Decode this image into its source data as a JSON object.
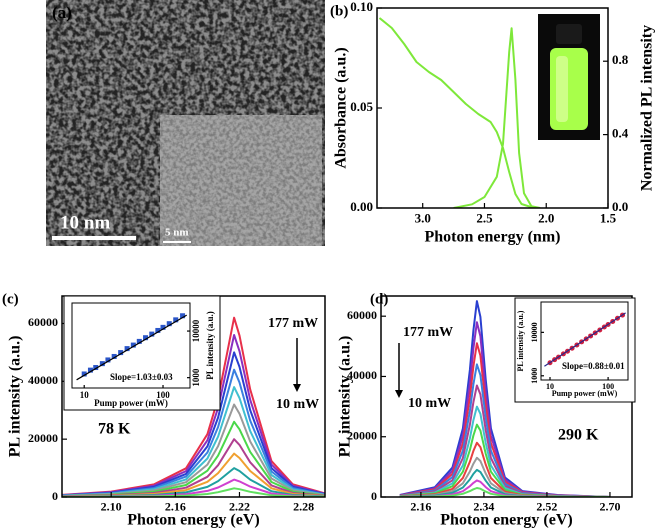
{
  "image_panel": {
    "label": "(a)",
    "scale_bar": "10 nm",
    "inset_scale_bar": "5 nm"
  },
  "chart_data": [
    {
      "type": "line",
      "panel": "(b)",
      "xlabel": "Photon energy (nm)",
      "ylabel": "Absorbance (a.u.)",
      "y2label": "Normalized PL intensity",
      "xlim": [
        3.37,
        1.5
      ],
      "xticks": [
        {
          "value": 3,
          "label": "3.0"
        },
        2.5,
        {
          "value": 2,
          "label": "2.0"
        },
        1.5
      ],
      "ylim": [
        0,
        0.1
      ],
      "yticks": [
        {
          "value": 0,
          "label": "0.00"
        },
        0.05,
        {
          "value": 0.1,
          "label": "0.10"
        }
      ],
      "y2lim": [
        0,
        1.09
      ],
      "y2ticks": [
        {
          "value": 0,
          "label": "0.0"
        },
        0.4,
        0.8
      ],
      "series": [
        {
          "color": "#7ee83a",
          "x": [
            3.35,
            3.25,
            3.15,
            3.05,
            2.95,
            2.85,
            2.75,
            2.65,
            2.55,
            2.45,
            2.4,
            2.35,
            2.3,
            2.25,
            2.2,
            2.1
          ],
          "values": [
            0.095,
            0.09,
            0.082,
            0.073,
            0.068,
            0.064,
            0.058,
            0.052,
            0.047,
            0.043,
            0.038,
            0.03,
            0.018,
            0.007,
            0.002,
            0
          ]
        },
        {
          "color": "#7ee83a",
          "axis": "y2",
          "x": [
            2.75,
            2.6,
            2.5,
            2.4,
            2.35,
            2.3,
            2.28,
            2.25,
            2.22,
            2.18,
            2.12,
            2.05
          ],
          "values": [
            0,
            0.02,
            0.06,
            0.17,
            0.35,
            0.85,
            0.98,
            0.7,
            0.3,
            0.08,
            0.01,
            0
          ]
        }
      ]
    },
    {
      "type": "line",
      "panel": "(c)",
      "xlabel": "Photon energy (eV)",
      "ylabel": "PL intensity (a.u.)",
      "annotations": [
        "177 mW",
        "10 mW",
        "78 K"
      ],
      "xlim": [
        2.054,
        2.3
      ],
      "xticks": [
        {
          "value": 2.1,
          "label": "2.10"
        },
        2.16,
        2.22,
        2.28
      ],
      "ylim": [
        0,
        69500
      ],
      "yticks": [
        0,
        20000,
        40000,
        60000
      ],
      "x": [
        2.05,
        2.1,
        2.14,
        2.17,
        2.19,
        2.2,
        2.21,
        2.215,
        2.22,
        2.23,
        2.25,
        2.27,
        2.3
      ],
      "series": [
        {
          "color": "#e8304a",
          "values": [
            620,
            1860,
            4340,
            9920,
            21700,
            34100,
            52700,
            62000,
            55800,
            37200,
            12400,
            4340,
            1240
          ]
        },
        {
          "color": "#8a2fc0",
          "values": [
            560,
            1680,
            3920,
            8960,
            19600,
            30800,
            47600,
            56000,
            50400,
            33600,
            11200,
            3920,
            1120
          ]
        },
        {
          "color": "#2a3fd0",
          "values": [
            500,
            1500,
            3500,
            8000,
            17500,
            27500,
            42500,
            50000,
            45000,
            30000,
            10000,
            3500,
            1000
          ]
        },
        {
          "color": "#3a7fe0",
          "values": [
            440,
            1320,
            3080,
            7040,
            15400,
            24200,
            37400,
            44000,
            39600,
            26400,
            8800,
            3080,
            880
          ]
        },
        {
          "color": "#40c0d0",
          "values": [
            380,
            1140,
            2660,
            6080,
            13300,
            20900,
            32300,
            38000,
            34200,
            22800,
            7600,
            2660,
            760
          ]
        },
        {
          "color": "#9a9a9a",
          "values": [
            320,
            960,
            2240,
            5120,
            11200,
            17600,
            27200,
            32000,
            28800,
            19200,
            6400,
            2240,
            640
          ]
        },
        {
          "color": "#4ad84a",
          "values": [
            260,
            780,
            1820,
            4160,
            9100,
            14300,
            22100,
            26000,
            23400,
            15600,
            5200,
            1820,
            520
          ]
        },
        {
          "color": "#b04090",
          "values": [
            200,
            600,
            1400,
            3200,
            7000,
            11000,
            17000,
            20000,
            18000,
            12000,
            4000,
            1400,
            400
          ]
        },
        {
          "color": "#f0a030",
          "values": [
            150,
            450,
            1050,
            2400,
            5250,
            8250,
            12750,
            15000,
            13500,
            9000,
            3000,
            1050,
            300
          ]
        },
        {
          "color": "#20a0a0",
          "values": [
            100,
            300,
            700,
            1600,
            3500,
            5500,
            8500,
            10000,
            9000,
            6000,
            2000,
            700,
            200
          ]
        },
        {
          "color": "#d040d0",
          "values": [
            60,
            180,
            420,
            960,
            2100,
            3300,
            5100,
            6000,
            5400,
            3600,
            1200,
            420,
            120
          ]
        },
        {
          "color": "#60e060",
          "values": [
            30,
            90,
            210,
            480,
            1050,
            1650,
            2550,
            3000,
            2700,
            1800,
            600,
            210,
            60
          ]
        }
      ]
    },
    {
      "type": "scatter",
      "xlabel": "Pump power (mW)",
      "ylabel": "PL intensity (a.u.)",
      "annotations": [
        "Slope=1.03±0.03"
      ],
      "xlog": true,
      "ylog": true,
      "xlim": [
        7,
        220
      ],
      "ylim": [
        600,
        40000
      ],
      "xticks": [
        10,
        100
      ],
      "yticks": [
        1000,
        10000
      ],
      "series": [
        {
          "mode": "markers",
          "marker": "square",
          "color": "#2a55c8",
          "x": [
            10,
            12,
            14,
            17,
            20,
            24,
            29,
            35,
            42,
            50,
            60,
            72,
            86,
            100,
            120,
            145,
            177
          ],
          "values": [
            1200,
            1450,
            1650,
            2000,
            2400,
            2850,
            3450,
            4200,
            5000,
            6000,
            7200,
            8600,
            10300,
            12000,
            14400,
            17400,
            21300
          ]
        },
        {
          "mode": "line",
          "color": "#000000",
          "x": [
            8,
            200
          ],
          "values": [
            900,
            22000
          ]
        }
      ]
    },
    {
      "type": "line",
      "panel": "(d)",
      "xlabel": "Photon energy (eV)",
      "ylabel": "PL intensity (a.u.)",
      "annotations": [
        "177 mW",
        "10 mW",
        "290 K"
      ],
      "xlim": [
        2.046,
        2.763
      ],
      "xticks": [
        2.16,
        2.34,
        2.52,
        {
          "value": 2.7,
          "label": "2.70"
        }
      ],
      "ylim": [
        0,
        66700
      ],
      "yticks": [
        0,
        20000,
        40000,
        60000
      ],
      "x": [
        2.1,
        2.2,
        2.25,
        2.28,
        2.3,
        2.31,
        2.32,
        2.33,
        2.345,
        2.36,
        2.4,
        2.45,
        2.55,
        2.7
      ],
      "series": [
        {
          "color": "#2a3fd0",
          "values": [
            650,
            3250,
            9750,
            22750,
            42250,
            55250,
            65000,
            59800,
            39000,
            22750,
            6500,
            1950,
            650,
            0
          ]
        },
        {
          "color": "#8a2fc0",
          "values": [
            580,
            2900,
            8700,
            20300,
            37700,
            49300,
            58000,
            53360,
            34800,
            20300,
            5800,
            1740,
            580,
            0
          ]
        },
        {
          "color": "#e8304a",
          "values": [
            510,
            2550,
            7650,
            17850,
            33150,
            43350,
            51000,
            46920,
            30600,
            17850,
            5100,
            1530,
            510,
            0
          ]
        },
        {
          "color": "#3a7fe0",
          "values": [
            440,
            2200,
            6600,
            15400,
            28600,
            37400,
            44000,
            40480,
            26400,
            15400,
            4400,
            1320,
            440,
            0
          ]
        },
        {
          "color": "#b04090",
          "values": [
            370,
            1850,
            5550,
            12950,
            24050,
            31450,
            37000,
            34040,
            22200,
            12950,
            3700,
            1110,
            370,
            0
          ]
        },
        {
          "color": "#40c0d0",
          "values": [
            300,
            1500,
            4500,
            10500,
            19500,
            25500,
            30000,
            27600,
            18000,
            10500,
            3000,
            900,
            300,
            0
          ]
        },
        {
          "color": "#4ad84a",
          "values": [
            240,
            1200,
            3600,
            8400,
            15600,
            20400,
            24000,
            22080,
            14400,
            8400,
            2400,
            720,
            240,
            0
          ]
        },
        {
          "color": "#e84040",
          "values": [
            180,
            900,
            2700,
            6300,
            11700,
            15300,
            18000,
            16560,
            10800,
            6300,
            1800,
            540,
            180,
            0
          ]
        },
        {
          "color": "#9a9a9a",
          "values": [
            130,
            650,
            1950,
            4550,
            8450,
            11050,
            13000,
            11960,
            7800,
            4550,
            1300,
            390,
            130,
            0
          ]
        },
        {
          "color": "#20a0a0",
          "values": [
            90,
            450,
            1350,
            3150,
            5850,
            7650,
            9000,
            8280,
            5400,
            3150,
            900,
            270,
            90,
            0
          ]
        },
        {
          "color": "#d040d0",
          "values": [
            55,
            275,
            825,
            1925,
            3575,
            4675,
            5500,
            5060,
            3300,
            1925,
            550,
            165,
            55,
            0
          ]
        },
        {
          "color": "#60e060",
          "values": [
            30,
            150,
            450,
            1050,
            1950,
            2550,
            3000,
            2760,
            1800,
            1050,
            300,
            90,
            30,
            0
          ]
        }
      ]
    },
    {
      "type": "scatter",
      "xlabel": "Pump power (mW)",
      "ylabel": "PL intensity (a.u.)",
      "annotations": [
        "Slope=0.88±0.01"
      ],
      "xlog": true,
      "ylog": true,
      "xlim": [
        7,
        220
      ],
      "ylim": [
        800,
        50000
      ],
      "xticks": [
        10,
        100
      ],
      "yticks": [
        1000,
        10000
      ],
      "series": [
        {
          "mode": "markers",
          "marker": "circle",
          "color": "#d02040",
          "x": [
            10,
            12,
            14,
            17,
            20,
            24,
            29,
            35,
            42,
            50,
            60,
            72,
            86,
            100,
            120,
            145,
            177
          ],
          "values": [
            2000,
            2350,
            2690,
            3190,
            3680,
            4320,
            5110,
            6030,
            7060,
            8270,
            9700,
            11350,
            13280,
            15170,
            17800,
            21100,
            25000
          ]
        },
        {
          "mode": "line",
          "color": "#2a2a8a",
          "x": [
            8,
            200
          ],
          "values": [
            1650,
            28000
          ]
        }
      ]
    }
  ]
}
